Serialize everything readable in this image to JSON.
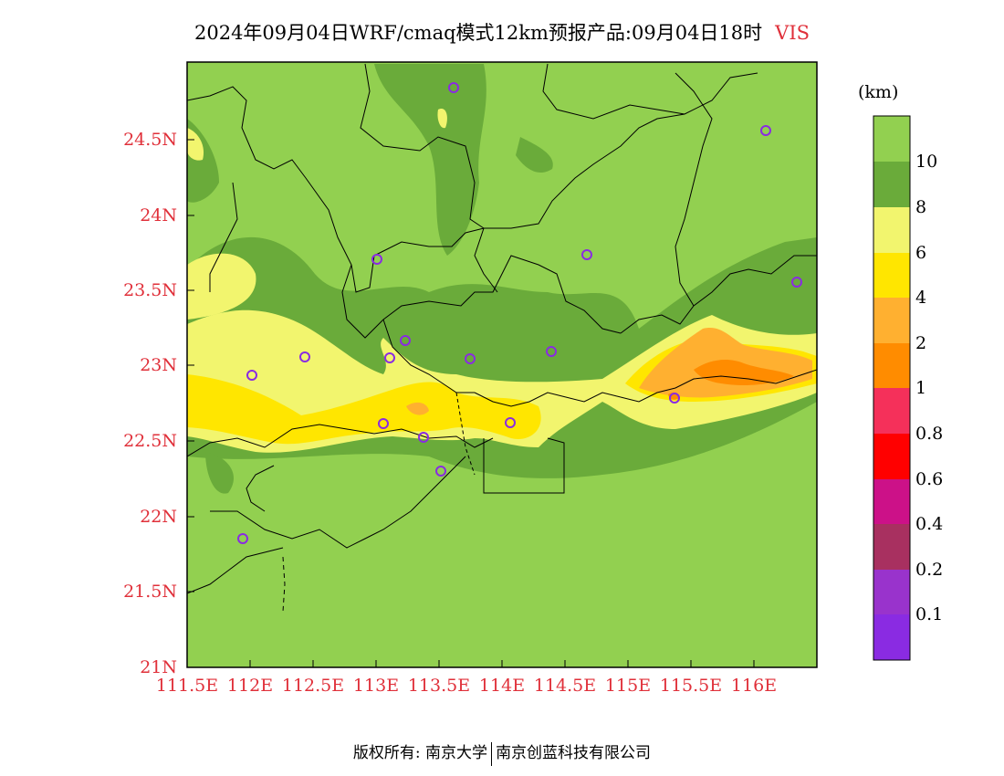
{
  "title": {
    "main": "2024年09月04日WRF/cmaq模式12km预报产品:09月04日18时",
    "variable": "VIS"
  },
  "map": {
    "lat_range": [
      21,
      25
    ],
    "lon_range": [
      111.5,
      116.5
    ],
    "lat_ticks": [
      "24.5N",
      "24N",
      "23.5N",
      "23N",
      "22.5N",
      "22N",
      "21.5N",
      "21N"
    ],
    "lon_ticks": [
      "111.5E",
      "112E",
      "112.5E",
      "113E",
      "113.5E",
      "114E",
      "114.5E",
      "115E",
      "115.5E",
      "116E"
    ]
  },
  "colorbar": {
    "unit": "(km)",
    "levels": [
      "10",
      "8",
      "6",
      "4",
      "2",
      "1",
      "0.8",
      "0.6",
      "0.4",
      "0.2",
      "0.1"
    ],
    "colors": [
      "#92d050",
      "#6aab3a",
      "#f2f56e",
      "#ffe600",
      "#ffb030",
      "#ff8c00",
      "#f5305a",
      "#ff0000",
      "#cc1188",
      "#a83060",
      "#9933cc",
      "#8a2be2"
    ]
  },
  "footer": {
    "copyright": "版权所有: 南京大学",
    "company": "南京创蓝科技有限公司"
  }
}
